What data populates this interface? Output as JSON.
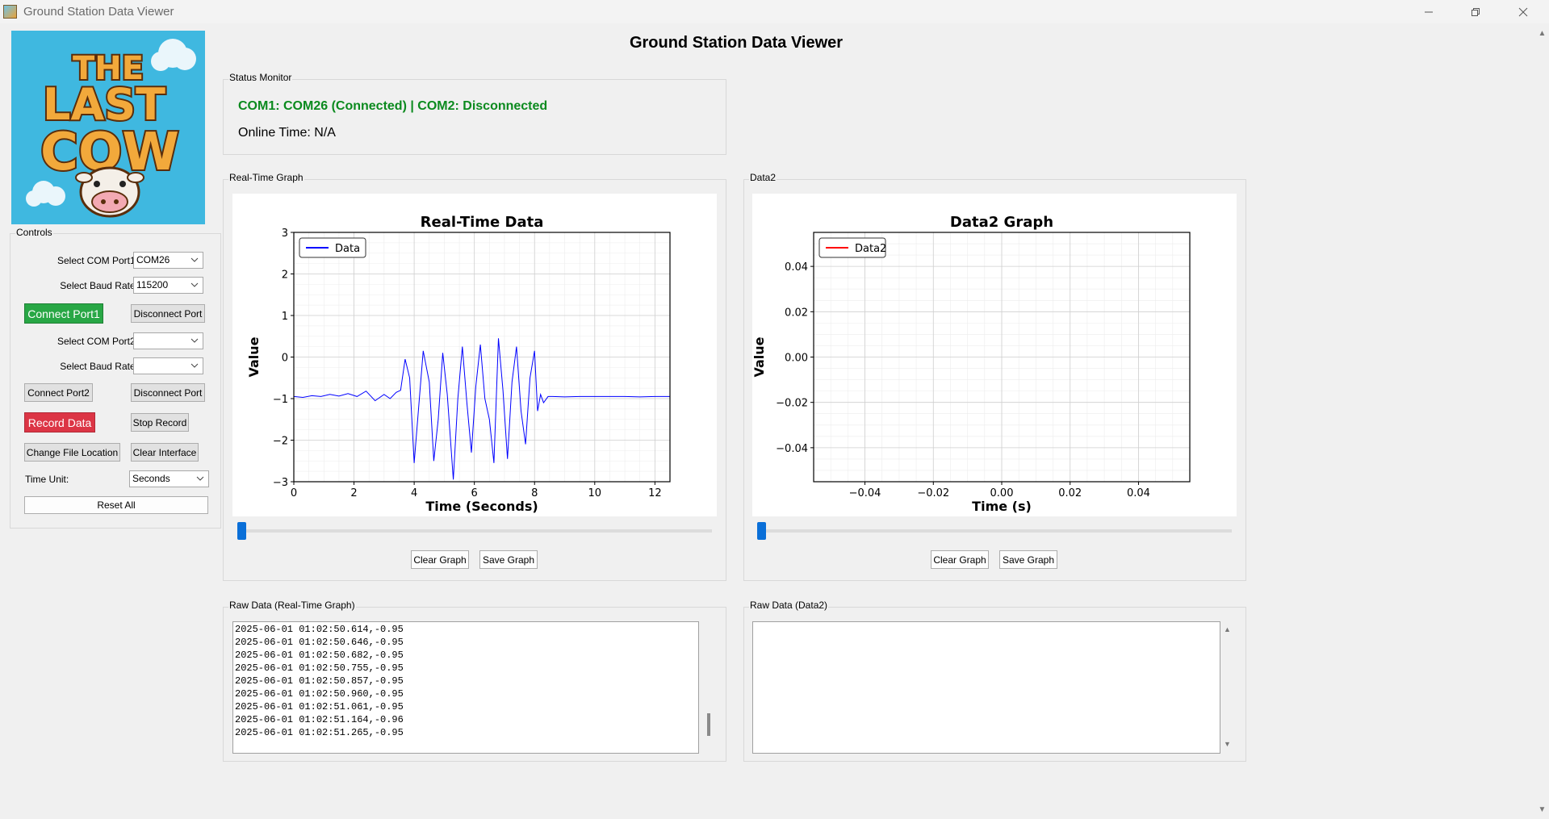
{
  "window": {
    "title": "Ground Station Data Viewer"
  },
  "app": {
    "heading": "Ground Station Data Viewer"
  },
  "controls": {
    "group_label": "Controls",
    "com_port1_label": "Select COM Port1:",
    "com_port1_value": "COM26",
    "baud1_label": "Select Baud Rate:",
    "baud1_value": "115200",
    "connect_port1": "Connect Port1",
    "disconnect_port1": "Disconnect Port",
    "com_port2_label": "Select COM Port2:",
    "com_port2_value": "",
    "baud2_label": "Select Baud Rate:",
    "baud2_value": "",
    "connect_port2": "Connect Port2",
    "disconnect_port2": "Disconnect Port",
    "record_data": "Record Data",
    "stop_record": "Stop Record",
    "change_file_location": "Change File Location",
    "clear_interface": "Clear Interface",
    "time_unit_label": "Time Unit:",
    "time_unit_value": "Seconds",
    "reset_all": "Reset All"
  },
  "status": {
    "group_label": "Status Monitor",
    "connection_text": "COM1: COM26 (Connected) | COM2: Disconnected",
    "online_time": "Online Time: N/A",
    "connected_color": "#0b8a1e"
  },
  "graph1": {
    "group_label": "Real-Time Graph",
    "clear_button": "Clear Graph",
    "save_button": "Save Graph",
    "slider_value": 0
  },
  "graph2": {
    "group_label": "Data2",
    "clear_button": "Clear Graph",
    "save_button": "Save Graph",
    "slider_value": 0
  },
  "raw1": {
    "group_label": "Raw Data (Real-Time Graph)",
    "lines": [
      "2025-06-01 01:02:50.614,-0.95",
      "2025-06-01 01:02:50.646,-0.95",
      "2025-06-01 01:02:50.682,-0.95",
      "2025-06-01 01:02:50.755,-0.95",
      "2025-06-01 01:02:50.857,-0.95",
      "2025-06-01 01:02:50.960,-0.95",
      "2025-06-01 01:02:51.061,-0.95",
      "2025-06-01 01:02:51.164,-0.96",
      "2025-06-01 01:02:51.265,-0.95"
    ]
  },
  "raw2": {
    "group_label": "Raw Data (Data2)",
    "lines": []
  },
  "chart_data": [
    {
      "type": "line",
      "title": "Real-Time Data",
      "xlabel": "Time (Seconds)",
      "ylabel": "Value",
      "xlim": [
        0,
        12.5
      ],
      "ylim": [
        -3,
        3
      ],
      "xticks": [
        "0",
        "2",
        "4",
        "6",
        "8",
        "10",
        "12"
      ],
      "yticks": [
        "3",
        "2",
        "1",
        "0",
        "−1",
        "−2",
        "−3"
      ],
      "grid": true,
      "legend": "top-left",
      "series": [
        {
          "name": "Data",
          "color": "#0000ff",
          "x": [
            0,
            0.3,
            0.6,
            0.9,
            1.2,
            1.5,
            1.8,
            2.1,
            2.4,
            2.7,
            3.0,
            3.2,
            3.4,
            3.55,
            3.7,
            3.85,
            4.0,
            4.15,
            4.3,
            4.5,
            4.65,
            4.8,
            4.95,
            5.1,
            5.3,
            5.45,
            5.6,
            5.75,
            5.9,
            6.05,
            6.2,
            6.35,
            6.5,
            6.65,
            6.8,
            6.95,
            7.1,
            7.25,
            7.4,
            7.55,
            7.7,
            7.85,
            8.0,
            8.1,
            8.2,
            8.3,
            8.45,
            8.6,
            9.0,
            9.5,
            10,
            10.5,
            11,
            11.5,
            12,
            12.5
          ],
          "y": [
            -0.95,
            -0.97,
            -0.93,
            -0.95,
            -0.9,
            -0.94,
            -0.88,
            -0.95,
            -0.82,
            -1.05,
            -0.9,
            -1.0,
            -0.85,
            -0.8,
            -0.05,
            -0.5,
            -2.55,
            -1.2,
            0.15,
            -0.6,
            -2.5,
            -1.5,
            0.1,
            -0.9,
            -2.95,
            -1.0,
            0.25,
            -1.1,
            -2.3,
            -0.7,
            0.3,
            -1.0,
            -1.5,
            -2.55,
            0.45,
            -0.8,
            -2.45,
            -0.6,
            0.25,
            -1.3,
            -2.1,
            -0.5,
            0.15,
            -1.3,
            -0.9,
            -1.1,
            -0.95,
            -0.95,
            -0.96,
            -0.95,
            -0.95,
            -0.95,
            -0.95,
            -0.96,
            -0.95,
            -0.95
          ]
        }
      ]
    },
    {
      "type": "line",
      "title": "Data2 Graph",
      "xlabel": "Time (s)",
      "ylabel": "Value",
      "xlim": [
        -0.055,
        0.055
      ],
      "ylim": [
        -0.055,
        0.055
      ],
      "xticks": [
        "−0.04",
        "−0.02",
        "0.00",
        "0.02",
        "0.04"
      ],
      "yticks": [
        "0.04",
        "0.02",
        "0.00",
        "−0.02",
        "−0.04"
      ],
      "grid": true,
      "legend": "top-left",
      "series": [
        {
          "name": "Data2",
          "color": "#ff0000",
          "x": [],
          "y": []
        }
      ]
    }
  ]
}
